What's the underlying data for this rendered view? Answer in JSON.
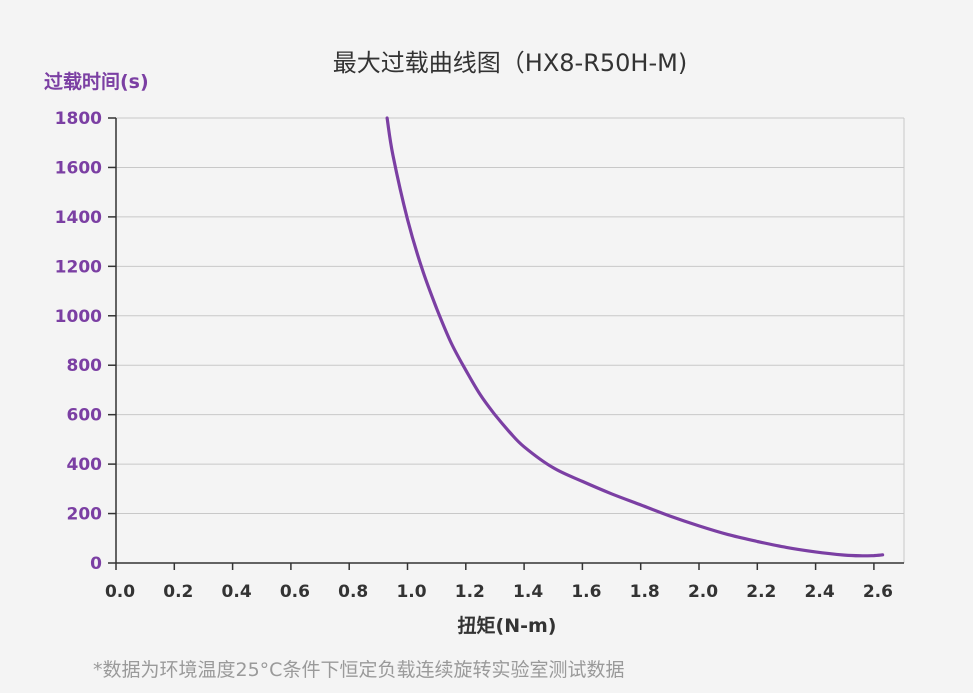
{
  "chart_data": {
    "type": "line",
    "title": "最大过载曲线图（HX8-R50H-M)",
    "xlabel": "扭矩(N-m)",
    "ylabel": "过载时间(s)",
    "xlim": [
      0,
      2.7
    ],
    "ylim": [
      0,
      1800
    ],
    "x_ticks": [
      "0.0",
      "0.2",
      "0.4",
      "0.6",
      "0.8",
      "1.0",
      "1.2",
      "1.4",
      "1.6",
      "1.8",
      "2.0",
      "2.2",
      "2.4",
      "2.6"
    ],
    "y_ticks": [
      "0",
      "200",
      "400",
      "600",
      "800",
      "1000",
      "1200",
      "1400",
      "1600",
      "1800"
    ],
    "grid": "horizontal",
    "series": [
      {
        "color": "#7b3fa3",
        "x": [
          0.93,
          0.95,
          1.0,
          1.05,
          1.1,
          1.15,
          1.2,
          1.25,
          1.3,
          1.35,
          1.4,
          1.5,
          1.6,
          1.7,
          1.8,
          1.9,
          2.0,
          2.1,
          2.2,
          2.3,
          2.4,
          2.5,
          2.56,
          2.6,
          2.63
        ],
        "y": [
          1800,
          1650,
          1390,
          1190,
          1030,
          890,
          780,
          680,
          600,
          530,
          470,
          385,
          330,
          280,
          235,
          190,
          150,
          115,
          87,
          63,
          45,
          32,
          29,
          30,
          33
        ]
      }
    ]
  },
  "colors": {
    "accent": "#7b3fa3",
    "axis": "#333333",
    "grid": "#c8c8c8",
    "background": "#f4f4f4"
  },
  "footnote": "*数据为环境温度25°C条件下恒定负载连续旋转实验室测试数据"
}
